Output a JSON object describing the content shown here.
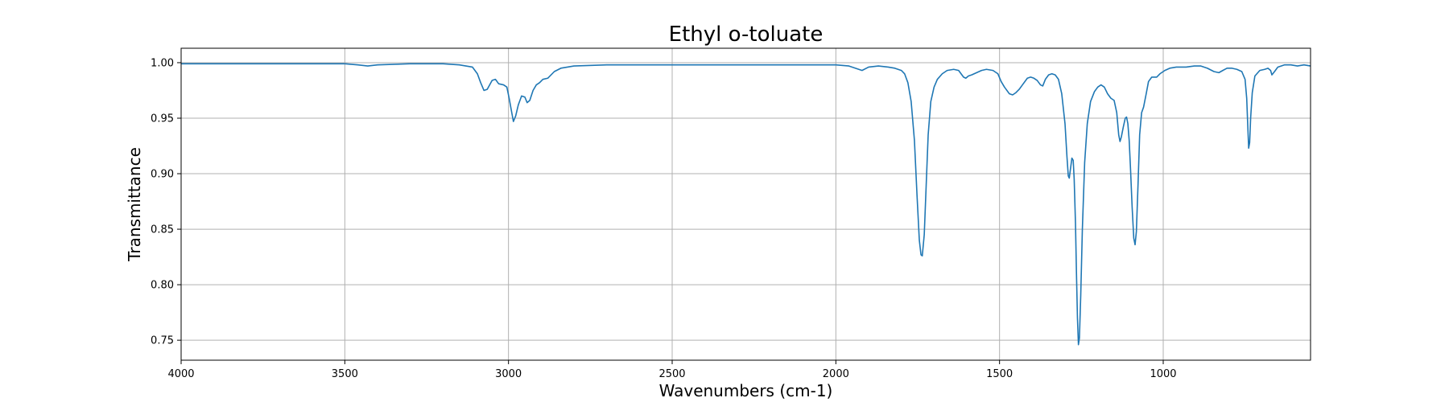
{
  "chart_data": {
    "type": "line",
    "title": "Ethyl o-toluate",
    "xlabel": "Wavenumbers (cm-1)",
    "ylabel": "Transmittance",
    "xlim": [
      4000,
      550
    ],
    "ylim": [
      0.732,
      1.013
    ],
    "x_ticks": [
      4000,
      3500,
      3000,
      2500,
      2000,
      1500,
      1000
    ],
    "x_tick_labels": [
      "4000",
      "3500",
      "3000",
      "2500",
      "2000",
      "1500",
      "1000"
    ],
    "y_ticks": [
      0.75,
      0.8,
      0.85,
      0.9,
      0.95,
      1.0
    ],
    "y_tick_labels": [
      "0.75",
      "0.80",
      "0.85",
      "0.90",
      "0.95",
      "1.00"
    ],
    "grid": true,
    "series": [
      {
        "color": "#1f77b4",
        "points": [
          [
            4000,
            0.999
          ],
          [
            3900,
            0.999
          ],
          [
            3800,
            0.999
          ],
          [
            3700,
            0.999
          ],
          [
            3600,
            0.999
          ],
          [
            3500,
            0.999
          ],
          [
            3460,
            0.998
          ],
          [
            3430,
            0.997
          ],
          [
            3400,
            0.998
          ],
          [
            3300,
            0.999
          ],
          [
            3200,
            0.999
          ],
          [
            3150,
            0.998
          ],
          [
            3110,
            0.996
          ],
          [
            3095,
            0.99
          ],
          [
            3085,
            0.982
          ],
          [
            3075,
            0.975
          ],
          [
            3065,
            0.976
          ],
          [
            3050,
            0.984
          ],
          [
            3040,
            0.985
          ],
          [
            3030,
            0.981
          ],
          [
            3015,
            0.98
          ],
          [
            3005,
            0.978
          ],
          [
            2998,
            0.968
          ],
          [
            2990,
            0.955
          ],
          [
            2985,
            0.947
          ],
          [
            2978,
            0.952
          ],
          [
            2970,
            0.962
          ],
          [
            2960,
            0.97
          ],
          [
            2950,
            0.969
          ],
          [
            2943,
            0.964
          ],
          [
            2935,
            0.966
          ],
          [
            2925,
            0.975
          ],
          [
            2915,
            0.98
          ],
          [
            2905,
            0.982
          ],
          [
            2895,
            0.985
          ],
          [
            2880,
            0.986
          ],
          [
            2860,
            0.992
          ],
          [
            2840,
            0.995
          ],
          [
            2800,
            0.997
          ],
          [
            2700,
            0.998
          ],
          [
            2600,
            0.998
          ],
          [
            2500,
            0.998
          ],
          [
            2400,
            0.998
          ],
          [
            2300,
            0.998
          ],
          [
            2200,
            0.998
          ],
          [
            2100,
            0.998
          ],
          [
            2000,
            0.998
          ],
          [
            1960,
            0.997
          ],
          [
            1940,
            0.995
          ],
          [
            1920,
            0.993
          ],
          [
            1900,
            0.996
          ],
          [
            1870,
            0.997
          ],
          [
            1840,
            0.996
          ],
          [
            1820,
            0.995
          ],
          [
            1800,
            0.993
          ],
          [
            1790,
            0.99
          ],
          [
            1780,
            0.982
          ],
          [
            1770,
            0.965
          ],
          [
            1760,
            0.93
          ],
          [
            1752,
            0.88
          ],
          [
            1745,
            0.84
          ],
          [
            1740,
            0.827
          ],
          [
            1736,
            0.826
          ],
          [
            1730,
            0.845
          ],
          [
            1724,
            0.89
          ],
          [
            1718,
            0.935
          ],
          [
            1710,
            0.965
          ],
          [
            1700,
            0.978
          ],
          [
            1690,
            0.985
          ],
          [
            1675,
            0.99
          ],
          [
            1660,
            0.993
          ],
          [
            1640,
            0.994
          ],
          [
            1625,
            0.993
          ],
          [
            1615,
            0.989
          ],
          [
            1610,
            0.987
          ],
          [
            1603,
            0.986
          ],
          [
            1595,
            0.988
          ],
          [
            1585,
            0.989
          ],
          [
            1570,
            0.991
          ],
          [
            1555,
            0.993
          ],
          [
            1540,
            0.994
          ],
          [
            1520,
            0.993
          ],
          [
            1505,
            0.99
          ],
          [
            1495,
            0.983
          ],
          [
            1485,
            0.978
          ],
          [
            1470,
            0.972
          ],
          [
            1460,
            0.971
          ],
          [
            1450,
            0.973
          ],
          [
            1440,
            0.976
          ],
          [
            1430,
            0.98
          ],
          [
            1415,
            0.986
          ],
          [
            1405,
            0.987
          ],
          [
            1395,
            0.986
          ],
          [
            1385,
            0.984
          ],
          [
            1375,
            0.98
          ],
          [
            1368,
            0.979
          ],
          [
            1360,
            0.985
          ],
          [
            1350,
            0.989
          ],
          [
            1340,
            0.99
          ],
          [
            1330,
            0.989
          ],
          [
            1320,
            0.985
          ],
          [
            1310,
            0.972
          ],
          [
            1300,
            0.945
          ],
          [
            1294,
            0.915
          ],
          [
            1290,
            0.898
          ],
          [
            1287,
            0.896
          ],
          [
            1283,
            0.905
          ],
          [
            1279,
            0.914
          ],
          [
            1275,
            0.912
          ],
          [
            1272,
            0.895
          ],
          [
            1268,
            0.855
          ],
          [
            1265,
            0.81
          ],
          [
            1262,
            0.77
          ],
          [
            1259,
            0.746
          ],
          [
            1256,
            0.752
          ],
          [
            1252,
            0.79
          ],
          [
            1247,
            0.85
          ],
          [
            1240,
            0.91
          ],
          [
            1232,
            0.945
          ],
          [
            1222,
            0.965
          ],
          [
            1210,
            0.974
          ],
          [
            1200,
            0.978
          ],
          [
            1190,
            0.98
          ],
          [
            1180,
            0.978
          ],
          [
            1170,
            0.972
          ],
          [
            1160,
            0.968
          ],
          [
            1150,
            0.966
          ],
          [
            1142,
            0.955
          ],
          [
            1136,
            0.935
          ],
          [
            1132,
            0.929
          ],
          [
            1128,
            0.933
          ],
          [
            1122,
            0.942
          ],
          [
            1116,
            0.95
          ],
          [
            1112,
            0.951
          ],
          [
            1108,
            0.945
          ],
          [
            1104,
            0.93
          ],
          [
            1100,
            0.905
          ],
          [
            1095,
            0.87
          ],
          [
            1090,
            0.842
          ],
          [
            1086,
            0.836
          ],
          [
            1082,
            0.848
          ],
          [
            1077,
            0.89
          ],
          [
            1072,
            0.935
          ],
          [
            1066,
            0.955
          ],
          [
            1060,
            0.96
          ],
          [
            1052,
            0.972
          ],
          [
            1045,
            0.983
          ],
          [
            1035,
            0.987
          ],
          [
            1020,
            0.987
          ],
          [
            1010,
            0.99
          ],
          [
            995,
            0.993
          ],
          [
            980,
            0.995
          ],
          [
            960,
            0.996
          ],
          [
            930,
            0.996
          ],
          [
            905,
            0.997
          ],
          [
            885,
            0.997
          ],
          [
            865,
            0.995
          ],
          [
            845,
            0.992
          ],
          [
            830,
            0.991
          ],
          [
            818,
            0.993
          ],
          [
            805,
            0.995
          ],
          [
            790,
            0.995
          ],
          [
            775,
            0.994
          ],
          [
            760,
            0.992
          ],
          [
            750,
            0.985
          ],
          [
            745,
            0.968
          ],
          [
            742,
            0.945
          ],
          [
            739,
            0.923
          ],
          [
            736,
            0.928
          ],
          [
            733,
            0.95
          ],
          [
            728,
            0.973
          ],
          [
            720,
            0.988
          ],
          [
            705,
            0.993
          ],
          [
            690,
            0.994
          ],
          [
            680,
            0.995
          ],
          [
            672,
            0.993
          ],
          [
            668,
            0.989
          ],
          [
            660,
            0.992
          ],
          [
            650,
            0.996
          ],
          [
            630,
            0.998
          ],
          [
            610,
            0.998
          ],
          [
            590,
            0.997
          ],
          [
            570,
            0.998
          ],
          [
            550,
            0.997
          ]
        ]
      }
    ]
  }
}
